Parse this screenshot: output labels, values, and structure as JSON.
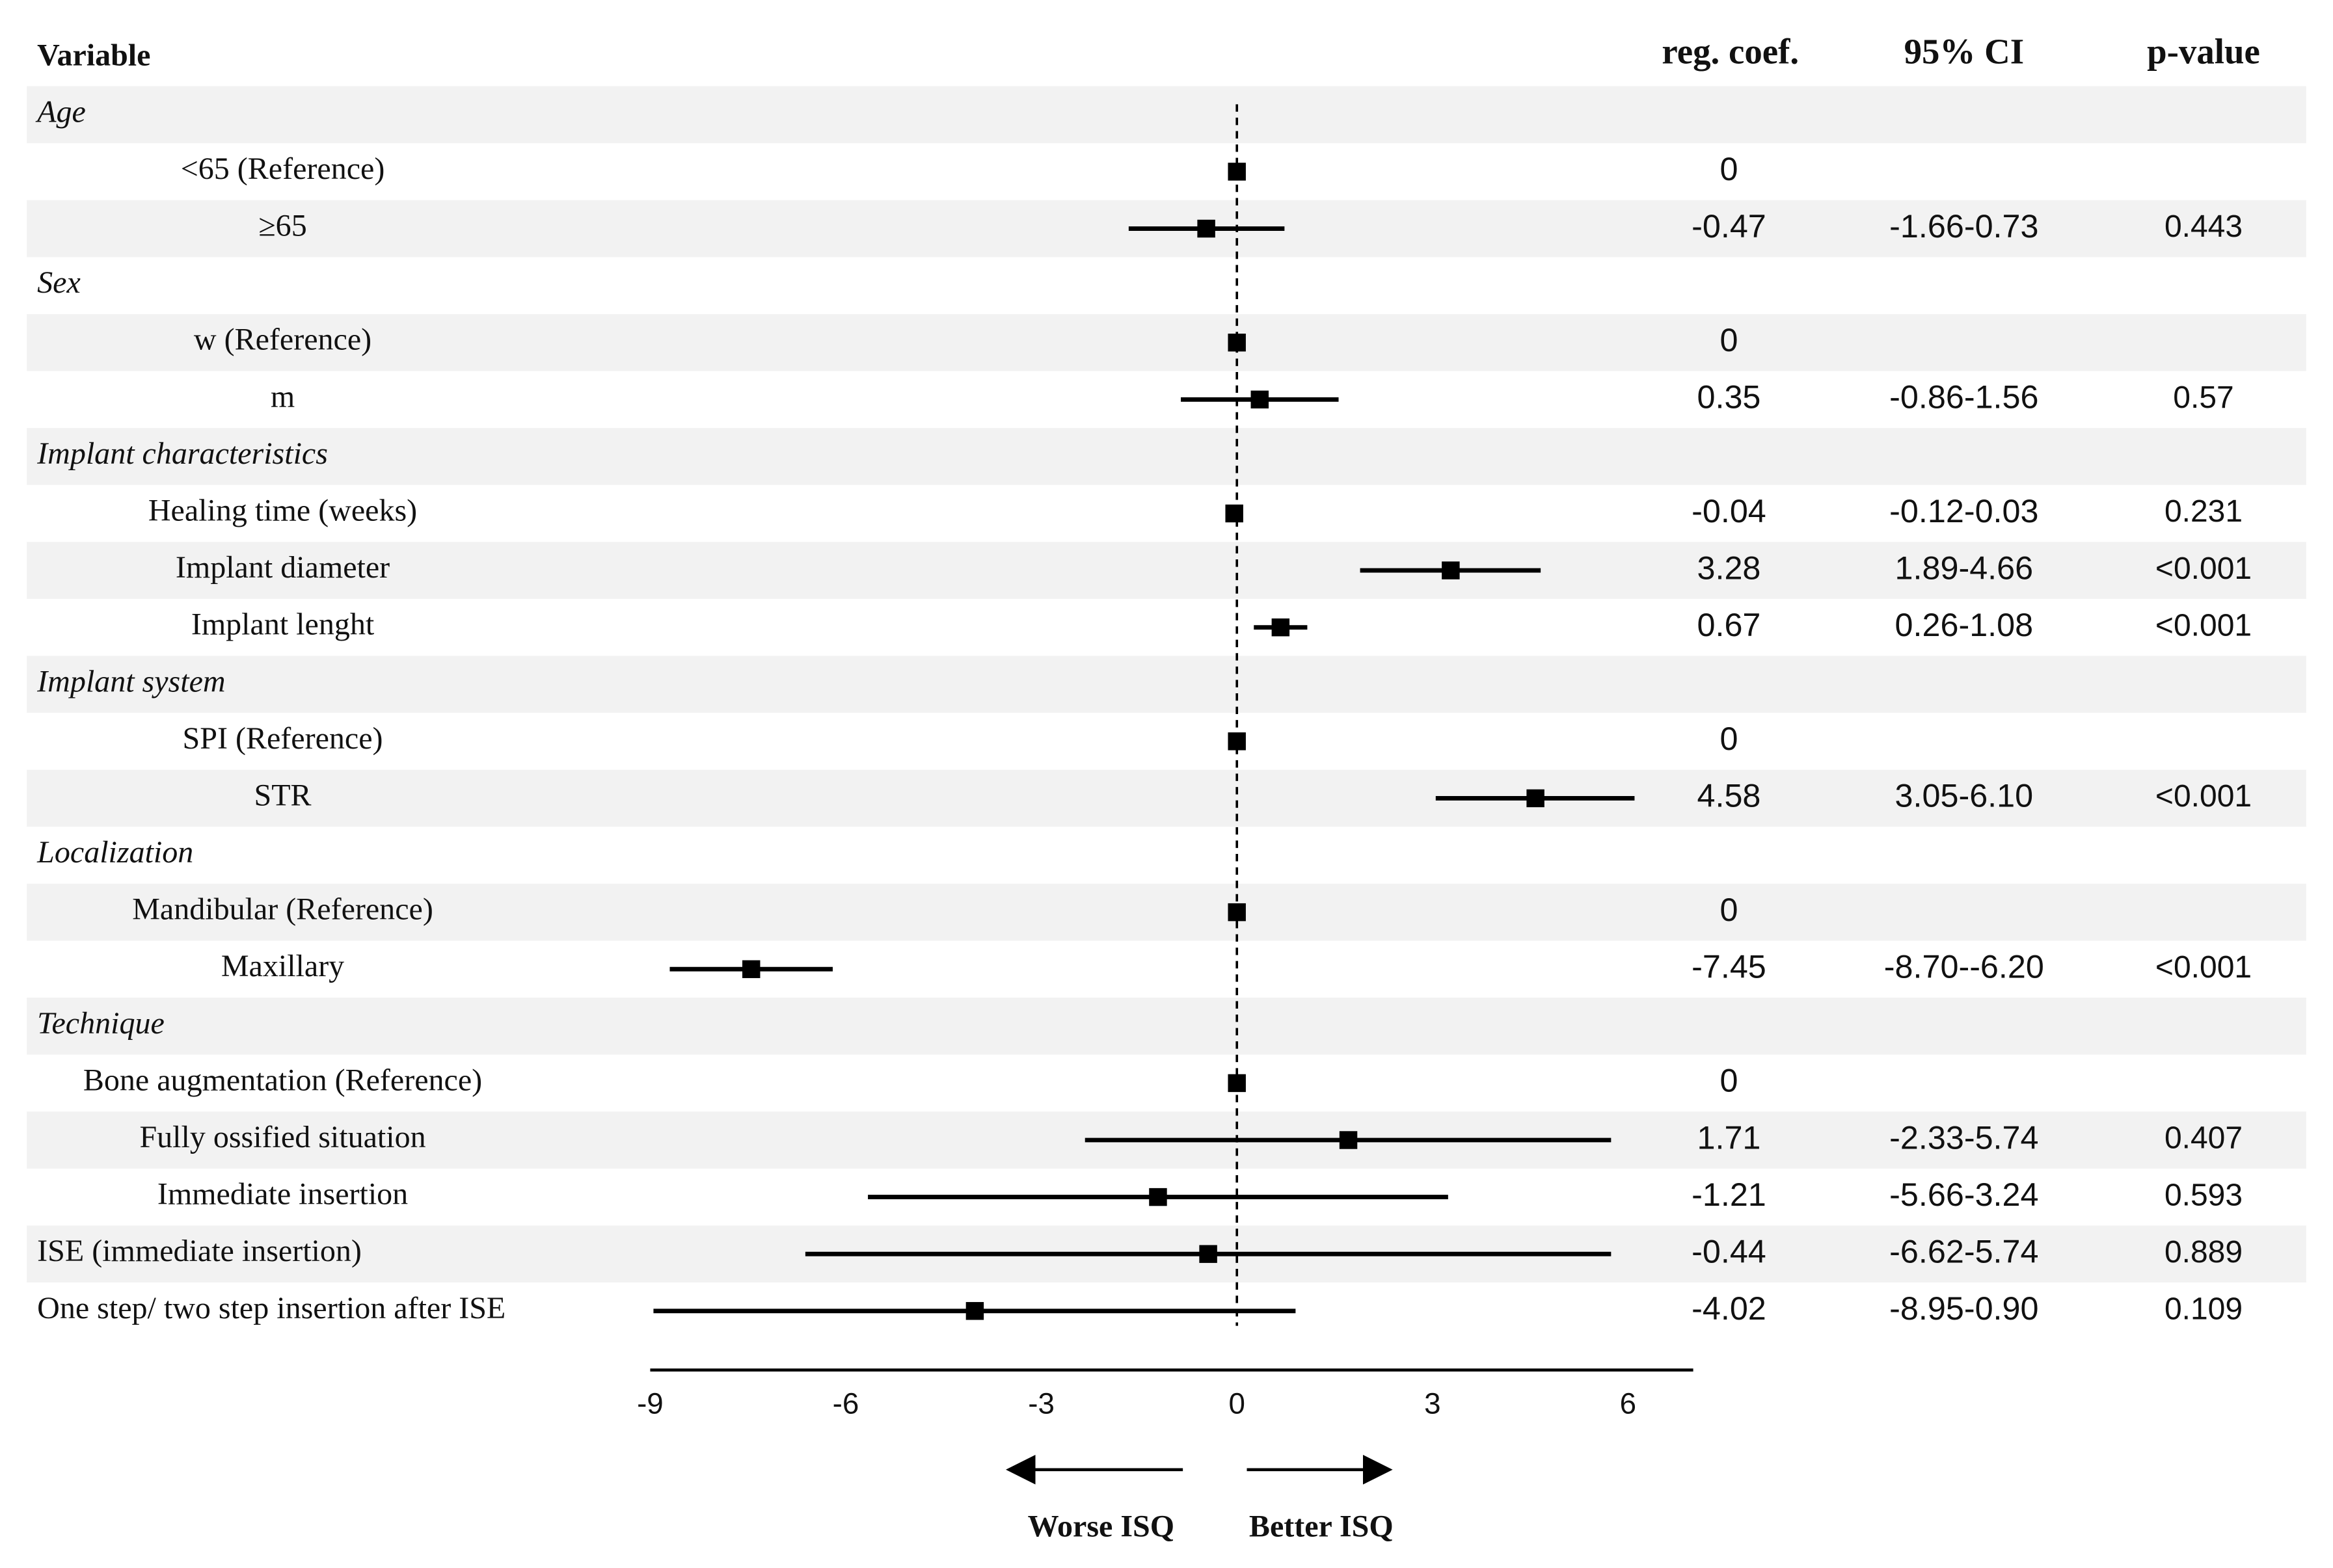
{
  "chart_data": {
    "type": "forest",
    "columns": [
      "Variable",
      "reg. coef.",
      "95% CI",
      "p-value"
    ],
    "groups": [
      {
        "name": "Age",
        "rows": [
          {
            "label": "<65 (Reference)",
            "estimate": 0
          },
          {
            "label": "≥65",
            "estimate": -0.47,
            "ci_low": -1.66,
            "ci_high": 0.73,
            "ci_label": "-1.66-0.73",
            "p": 0.443
          }
        ]
      },
      {
        "name": "Sex",
        "rows": [
          {
            "label": "w (Reference)",
            "estimate": 0
          },
          {
            "label": "m",
            "estimate": 0.35,
            "ci_low": -0.86,
            "ci_high": 1.56,
            "ci_label": "-0.86-1.56",
            "p": 0.57
          }
        ]
      },
      {
        "name": "Implant characteristics",
        "rows": [
          {
            "label": "Healing time (weeks)",
            "estimate": -0.04,
            "ci_low": -0.12,
            "ci_high": 0.03,
            "ci_label": "-0.12-0.03",
            "p": 0.231
          },
          {
            "label": "Implant diameter",
            "estimate": 3.28,
            "ci_low": 1.89,
            "ci_high": 4.66,
            "ci_label": "1.89-4.66",
            "p": "<0.001"
          },
          {
            "label": "Implant lenght",
            "estimate": 0.67,
            "ci_low": 0.26,
            "ci_high": 1.08,
            "ci_label": "0.26-1.08",
            "p": "<0.001"
          }
        ]
      },
      {
        "name": "Implant system",
        "rows": [
          {
            "label": "SPI (Reference)",
            "estimate": 0
          },
          {
            "label": "STR",
            "estimate": 4.58,
            "ci_low": 3.05,
            "ci_high": 6.1,
            "ci_label": "3.05-6.10",
            "p": "<0.001"
          }
        ]
      },
      {
        "name": "Localization",
        "rows": [
          {
            "label": "Mandibular (Reference)",
            "estimate": 0
          },
          {
            "label": "Maxillary",
            "estimate": -7.45,
            "ci_low": -8.7,
            "ci_high": -6.2,
            "ci_label": "-8.70--6.20",
            "p": "<0.001"
          }
        ]
      },
      {
        "name": "Technique",
        "rows": [
          {
            "label": "Bone augmentation (Reference)",
            "estimate": 0
          },
          {
            "label": "Fully ossified situation",
            "estimate": 1.71,
            "ci_low": -2.33,
            "ci_high": 5.74,
            "ci_label": "-2.33-5.74",
            "p": 0.407
          },
          {
            "label": "Immediate insertion",
            "estimate": -1.21,
            "ci_low": -5.66,
            "ci_high": 3.24,
            "ci_label": "-5.66-3.24",
            "p": 0.593
          }
        ]
      },
      {
        "rows": [
          {
            "label": "ISE (immediate insertion)",
            "estimate": -0.44,
            "ci_low": -6.62,
            "ci_high": 5.74,
            "ci_label": "-6.62-5.74",
            "p": 0.889
          },
          {
            "label": "One step/ two step insertion after ISE",
            "estimate": -4.02,
            "ci_low": -8.95,
            "ci_high": 0.9,
            "ci_label": "-8.95-0.90",
            "p": 0.109
          }
        ]
      }
    ],
    "xlim": [
      -9,
      7
    ],
    "xticks": [
      -9,
      -6,
      -3,
      0,
      3,
      6
    ],
    "arrow_labels": [
      "Worse ISQ",
      "Better ISQ"
    ],
    "color": "#000000"
  }
}
